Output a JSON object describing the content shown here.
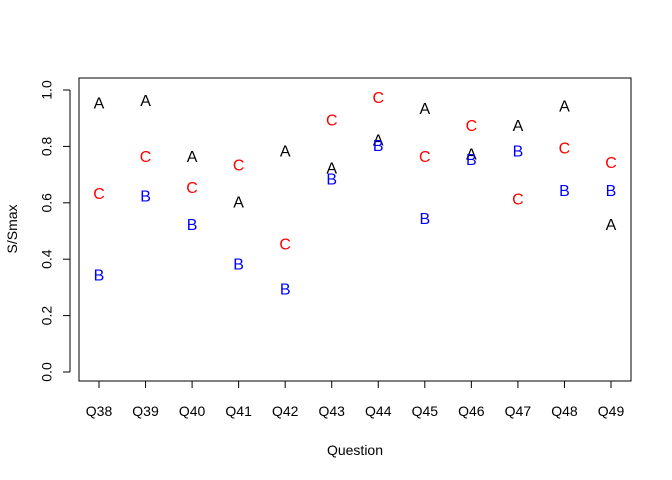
{
  "chart_data": {
    "type": "scatter",
    "categories": [
      "Q38",
      "Q39",
      "Q40",
      "Q41",
      "Q42",
      "Q43",
      "Q44",
      "Q45",
      "Q46",
      "Q47",
      "Q48",
      "Q49"
    ],
    "xlabel": "Question",
    "ylabel": "S/Smax",
    "ylim": [
      0.0,
      1.0
    ],
    "yticks": [
      "0.0",
      "0.2",
      "0.4",
      "0.6",
      "0.8",
      "1.0"
    ],
    "grid": false,
    "series": [
      {
        "name": "A",
        "color": "#000000",
        "values": [
          0.95,
          0.96,
          0.76,
          0.6,
          0.78,
          0.72,
          0.82,
          0.93,
          0.77,
          0.87,
          0.94,
          0.52
        ]
      },
      {
        "name": "B",
        "color": "#0000ff",
        "values": [
          0.34,
          0.62,
          0.52,
          0.38,
          0.29,
          0.68,
          0.8,
          0.54,
          0.75,
          0.78,
          0.64,
          0.64
        ]
      },
      {
        "name": "C",
        "color": "#ff0000",
        "values": [
          0.63,
          0.76,
          0.65,
          0.73,
          0.45,
          0.89,
          0.97,
          0.76,
          0.87,
          0.61,
          0.79,
          0.74
        ]
      }
    ]
  }
}
